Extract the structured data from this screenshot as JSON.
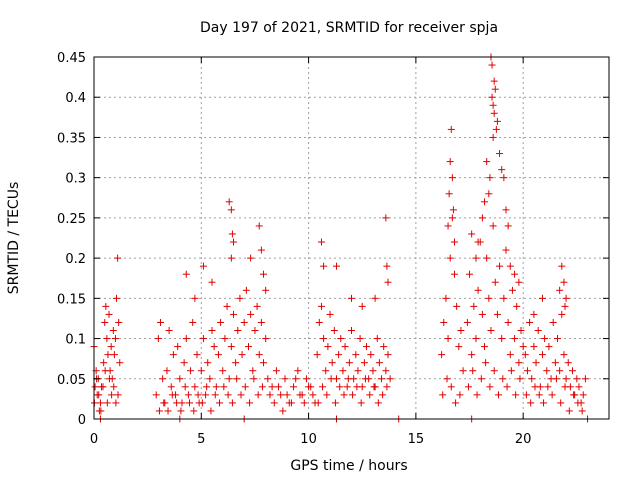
{
  "chart_data": {
    "type": "scatter",
    "title": "Day 197 of 2021, SRMTID for receiver spja",
    "xlabel": "GPS time / hours",
    "ylabel": "SRMTID / TECUs",
    "xlim": [
      0,
      24
    ],
    "ylim": [
      0,
      0.45
    ],
    "xticks": [
      0,
      5,
      10,
      15,
      20
    ],
    "xtick_labels": [
      "0",
      "5",
      "10",
      "15",
      "20"
    ],
    "yticks": [
      0,
      0.05,
      0.1,
      0.15,
      0.2,
      0.25,
      0.3,
      0.35,
      0.4,
      0.45
    ],
    "ytick_labels": [
      "0",
      "0.05",
      "0.1",
      "0.15",
      "0.2",
      "0.25",
      "0.3",
      "0.35",
      "0.4",
      "0.45"
    ],
    "grid": true,
    "legend": "none",
    "marker": "+",
    "colors": {
      "points": "#e00000",
      "grid": "#a0a0a0",
      "axis": "#000000"
    },
    "series": [
      {
        "x": [
          0.0,
          0.05,
          0.1,
          0.15,
          0.2,
          0.25,
          0.3,
          0.35,
          0.45,
          0.5,
          0.55,
          0.6,
          0.65,
          0.7,
          0.75,
          0.8,
          0.85,
          0.9,
          0.95,
          1.0,
          1.05,
          1.1,
          1.15,
          1.2,
          0.02,
          0.12,
          0.22,
          0.32,
          0.42,
          0.52,
          0.62,
          0.72,
          0.82,
          0.92,
          1.02,
          1.12,
          2.9,
          3.0,
          3.1,
          3.2,
          3.3,
          3.4,
          3.5,
          3.6,
          3.7,
          3.8,
          3.9,
          4.0,
          4.1,
          4.2,
          4.3,
          4.4,
          4.5,
          4.6,
          4.7,
          4.8,
          4.9,
          5.0,
          5.1,
          5.2,
          5.3,
          5.4,
          5.5,
          5.6,
          5.7,
          5.8,
          5.9,
          6.0,
          6.1,
          6.2,
          6.3,
          6.4,
          6.5,
          6.6,
          6.7,
          6.8,
          6.9,
          7.0,
          7.1,
          7.2,
          7.3,
          7.4,
          7.5,
          7.6,
          7.7,
          7.8,
          7.9,
          8.0,
          3.05,
          3.25,
          3.45,
          3.65,
          3.85,
          4.05,
          4.25,
          4.45,
          4.65,
          4.85,
          5.05,
          5.25,
          5.45,
          5.65,
          5.85,
          6.05,
          6.25,
          6.45,
          6.65,
          6.85,
          7.05,
          7.25,
          7.45,
          7.65,
          7.85,
          4.3,
          4.7,
          5.1,
          5.5,
          6.3,
          6.4,
          6.5,
          7.3,
          7.7,
          7.9,
          8.0,
          7.8,
          6.4,
          6.45,
          8.1,
          8.3,
          8.5,
          8.7,
          8.9,
          9.1,
          9.3,
          9.5,
          9.7,
          9.9,
          10.1,
          10.3,
          8.2,
          8.4,
          8.6,
          8.8,
          9.0,
          9.2,
          9.4,
          9.6,
          9.8,
          10.0,
          10.2,
          10.4,
          10.5,
          10.6,
          10.7,
          10.8,
          10.9,
          11.0,
          11.1,
          11.2,
          11.3,
          11.4,
          11.5,
          11.6,
          11.7,
          11.8,
          11.9,
          12.0,
          12.1,
          12.2,
          12.3,
          12.4,
          12.5,
          12.6,
          12.7,
          12.8,
          12.9,
          13.0,
          13.1,
          13.2,
          13.3,
          13.4,
          13.5,
          13.6,
          13.7,
          13.8,
          10.45,
          10.65,
          10.85,
          11.05,
          11.25,
          11.45,
          11.65,
          11.85,
          12.05,
          12.25,
          12.45,
          12.65,
          12.85,
          13.05,
          13.25,
          13.45,
          13.65,
          10.6,
          10.7,
          11.3,
          12.0,
          12.5,
          13.6,
          13.65,
          13.7,
          13.1,
          16.2,
          16.3,
          16.4,
          16.5,
          16.6,
          16.7,
          16.8,
          16.9,
          17.0,
          17.1,
          17.2,
          16.25,
          16.45,
          16.65,
          16.85,
          17.05,
          16.6,
          16.65,
          16.7,
          16.55,
          16.75,
          16.8,
          16.5,
          17.4,
          17.5,
          17.6,
          17.7,
          17.8,
          17.9,
          18.0,
          18.1,
          18.2,
          18.3,
          18.4,
          18.5,
          18.6,
          18.7,
          18.8,
          18.9,
          19.0,
          19.1,
          19.2,
          19.3,
          19.4,
          19.5,
          19.6,
          19.7,
          19.8,
          19.9,
          20.0,
          17.45,
          17.65,
          17.85,
          18.05,
          18.25,
          18.45,
          18.65,
          18.85,
          19.05,
          19.25,
          19.45,
          19.65,
          19.85,
          18.5,
          18.55,
          18.6,
          18.65,
          18.7,
          18.75,
          18.8,
          18.9,
          19.0,
          19.1,
          18.3,
          18.4,
          18.45,
          18.6,
          19.2,
          19.3,
          18.2,
          18.1,
          17.9,
          17.8,
          17.6,
          19.4,
          19.6,
          19.8,
          18.55,
          18.65,
          20.1,
          20.2,
          20.3,
          20.4,
          20.5,
          20.6,
          20.7,
          20.8,
          20.9,
          21.0,
          21.1,
          21.2,
          21.3,
          21.4,
          21.5,
          21.6,
          21.7,
          21.8,
          21.9,
          22.0,
          22.1,
          22.2,
          22.3,
          22.4,
          22.5,
          22.6,
          22.7,
          22.8,
          22.9,
          20.15,
          20.35,
          20.55,
          20.75,
          20.95,
          21.15,
          21.35,
          21.55,
          21.75,
          21.95,
          22.15,
          22.35,
          22.55,
          22.75,
          21.8,
          21.9,
          22.0,
          21.7,
          21.95,
          20.9,
          20.5,
          0.3,
          4.0,
          7.0,
          11.3,
          14.2,
          17.6,
          23.0
        ],
        "y": [
          0.09,
          0.04,
          0.06,
          0.03,
          0.05,
          0.01,
          0.02,
          0.04,
          0.07,
          0.12,
          0.14,
          0.1,
          0.08,
          0.13,
          0.06,
          0.09,
          0.05,
          0.11,
          0.08,
          0.1,
          0.15,
          0.2,
          0.12,
          0.07,
          0.02,
          0.05,
          0.03,
          0.01,
          0.04,
          0.06,
          0.02,
          0.05,
          0.03,
          0.04,
          0.02,
          0.03,
          0.03,
          0.1,
          0.12,
          0.05,
          0.02,
          0.06,
          0.11,
          0.04,
          0.08,
          0.03,
          0.09,
          0.05,
          0.02,
          0.07,
          0.1,
          0.03,
          0.06,
          0.12,
          0.04,
          0.08,
          0.02,
          0.06,
          0.1,
          0.03,
          0.07,
          0.05,
          0.11,
          0.09,
          0.04,
          0.08,
          0.12,
          0.06,
          0.1,
          0.14,
          0.05,
          0.09,
          0.13,
          0.07,
          0.11,
          0.15,
          0.08,
          0.12,
          0.16,
          0.09,
          0.13,
          0.06,
          0.11,
          0.14,
          0.08,
          0.12,
          0.07,
          0.1,
          0.01,
          0.02,
          0.01,
          0.03,
          0.02,
          0.01,
          0.04,
          0.02,
          0.01,
          0.03,
          0.02,
          0.04,
          0.01,
          0.03,
          0.02,
          0.04,
          0.03,
          0.02,
          0.05,
          0.03,
          0.04,
          0.02,
          0.05,
          0.03,
          0.04,
          0.18,
          0.15,
          0.19,
          0.17,
          0.27,
          0.26,
          0.22,
          0.2,
          0.24,
          0.18,
          0.16,
          0.21,
          0.2,
          0.23,
          0.05,
          0.04,
          0.06,
          0.03,
          0.05,
          0.02,
          0.04,
          0.06,
          0.03,
          0.05,
          0.04,
          0.02,
          0.03,
          0.02,
          0.04,
          0.01,
          0.03,
          0.02,
          0.05,
          0.03,
          0.02,
          0.04,
          0.03,
          0.08,
          0.12,
          0.14,
          0.1,
          0.06,
          0.09,
          0.13,
          0.07,
          0.11,
          0.05,
          0.08,
          0.1,
          0.06,
          0.09,
          0.04,
          0.07,
          0.11,
          0.05,
          0.08,
          0.06,
          0.1,
          0.04,
          0.07,
          0.09,
          0.05,
          0.08,
          0.06,
          0.04,
          0.1,
          0.07,
          0.05,
          0.09,
          0.06,
          0.08,
          0.05,
          0.02,
          0.04,
          0.03,
          0.05,
          0.02,
          0.04,
          0.03,
          0.05,
          0.03,
          0.04,
          0.02,
          0.05,
          0.03,
          0.04,
          0.02,
          0.03,
          0.04,
          0.22,
          0.19,
          0.19,
          0.15,
          0.14,
          0.25,
          0.19,
          0.17,
          0.15,
          0.08,
          0.12,
          0.15,
          0.1,
          0.2,
          0.25,
          0.18,
          0.14,
          0.09,
          0.11,
          0.06,
          0.03,
          0.05,
          0.04,
          0.02,
          0.03,
          0.32,
          0.36,
          0.3,
          0.28,
          0.26,
          0.22,
          0.24,
          0.12,
          0.18,
          0.08,
          0.14,
          0.1,
          0.16,
          0.22,
          0.13,
          0.09,
          0.2,
          0.15,
          0.11,
          0.24,
          0.17,
          0.13,
          0.19,
          0.1,
          0.15,
          0.21,
          0.12,
          0.08,
          0.16,
          0.1,
          0.14,
          0.07,
          0.11,
          0.09,
          0.04,
          0.06,
          0.03,
          0.05,
          0.07,
          0.04,
          0.06,
          0.03,
          0.05,
          0.04,
          0.06,
          0.03,
          0.05,
          0.45,
          0.44,
          0.39,
          0.38,
          0.41,
          0.36,
          0.37,
          0.33,
          0.31,
          0.3,
          0.32,
          0.28,
          0.3,
          0.35,
          0.26,
          0.24,
          0.27,
          0.25,
          0.22,
          0.2,
          0.23,
          0.19,
          0.18,
          0.17,
          0.4,
          0.42,
          0.08,
          0.06,
          0.12,
          0.05,
          0.09,
          0.07,
          0.11,
          0.04,
          0.08,
          0.1,
          0.06,
          0.09,
          0.05,
          0.12,
          0.07,
          0.1,
          0.06,
          0.13,
          0.08,
          0.05,
          0.07,
          0.04,
          0.06,
          0.03,
          0.05,
          0.04,
          0.02,
          0.03,
          0.05,
          0.03,
          0.02,
          0.04,
          0.03,
          0.02,
          0.04,
          0.03,
          0.05,
          0.02,
          0.04,
          0.01,
          0.03,
          0.02,
          0.01,
          0.19,
          0.17,
          0.15,
          0.16,
          0.14,
          0.15,
          0.13,
          0.0,
          0.0,
          0.0,
          0.0,
          0.0,
          0.0,
          0.0
        ]
      }
    ]
  }
}
